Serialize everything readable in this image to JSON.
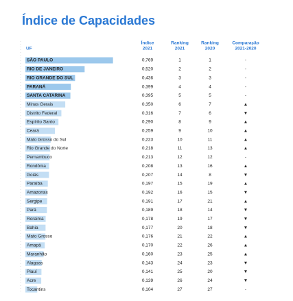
{
  "header": {
    "title": "Índice de Capacidades"
  },
  "table": {
    "columns": {
      "uf": "UF",
      "index": [
        "Índice",
        "2021"
      ],
      "rank2021": [
        "Ranking",
        "2021"
      ],
      "rank2020": [
        "Ranking",
        "2020"
      ],
      "change": [
        "Comparação",
        "2021-2020"
      ]
    },
    "highlight_count": 5,
    "rows": [
      [
        "SÃO PAULO",
        "0,769",
        1,
        1,
        "-"
      ],
      [
        "RIO DE JANEIRO",
        "0,520",
        2,
        2,
        "-"
      ],
      [
        "RIO GRANDE DO SUL",
        "0,436",
        3,
        3,
        "-"
      ],
      [
        "PARANÁ",
        "0,399",
        4,
        4,
        "-"
      ],
      [
        "SANTA CATARINA",
        "0,395",
        5,
        5,
        "-"
      ],
      [
        "Minas Gerais",
        "0,350",
        6,
        7,
        "▲"
      ],
      [
        "Distrito Federal",
        "0,316",
        7,
        6,
        "▼"
      ],
      [
        "Espírito Santo",
        "0,290",
        8,
        9,
        "▲"
      ],
      [
        "Ceará",
        "0,259",
        9,
        10,
        "▲"
      ],
      [
        "Mato Grosso do Sul",
        "0,223",
        10,
        11,
        "▲"
      ],
      [
        "Rio Grande do Norte",
        "0,218",
        11,
        13,
        "▲"
      ],
      [
        "Pernambuco",
        "0,213",
        12,
        12,
        "-"
      ],
      [
        "Rondônia",
        "0,208",
        13,
        16,
        "▲"
      ],
      [
        "Goiás",
        "0,207",
        14,
        8,
        "▼"
      ],
      [
        "Paraíba",
        "0,197",
        15,
        19,
        "▲"
      ],
      [
        "Amazonas",
        "0,192",
        16,
        15,
        "▼"
      ],
      [
        "Sergipe",
        "0,191",
        17,
        21,
        "▲"
      ],
      [
        "Pará",
        "0,189",
        18,
        14,
        "▼"
      ],
      [
        "Roraima",
        "0,178",
        19,
        17,
        "▼"
      ],
      [
        "Bahia",
        "0,177",
        20,
        18,
        "▼"
      ],
      [
        "Mato Grosso",
        "0,176",
        21,
        22,
        "▲"
      ],
      [
        "Amapá",
        "0,170",
        22,
        26,
        "▲"
      ],
      [
        "Maranhão",
        "0,160",
        23,
        25,
        "▲"
      ],
      [
        "Alagoas",
        "0,143",
        24,
        23,
        "▼"
      ],
      [
        "Piauí",
        "0,141",
        25,
        20,
        "▼"
      ],
      [
        "Acre",
        "0,139",
        26,
        24,
        "▼"
      ],
      [
        "Tocantins",
        "0,104",
        27,
        27,
        "-"
      ]
    ]
  }
}
